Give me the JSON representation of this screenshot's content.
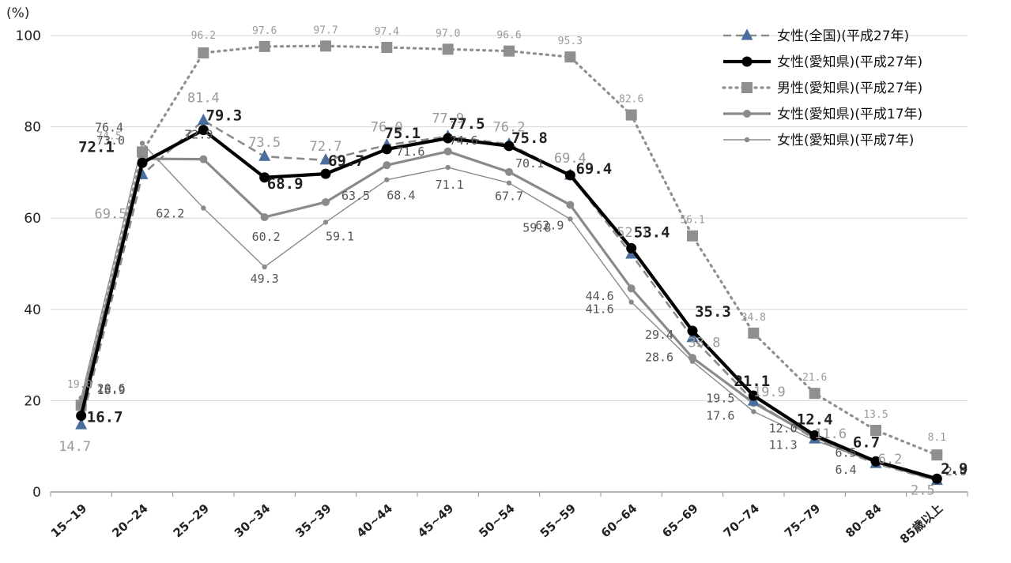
{
  "chart_data": {
    "type": "line",
    "ylabel": "(%)",
    "ylim": [
      0,
      100
    ],
    "yticks": [
      "0",
      "20",
      "40",
      "60",
      "80",
      "100"
    ],
    "grid": true,
    "legend_position": "top-right",
    "categories": [
      "15~19",
      "20~24",
      "25~29",
      "30~34",
      "35~39",
      "40~44",
      "45~49",
      "50~54",
      "55~59",
      "60~64",
      "65~69",
      "70~74",
      "75~79",
      "80~84",
      "85歳以上"
    ],
    "series": [
      {
        "name": "女性(全国)(平成27年)",
        "color": "#4a6d9c",
        "line_color": "#8a8a8a",
        "marker": "triangle",
        "values": [
          14.7,
          69.5,
          81.4,
          73.5,
          72.7,
          76.0,
          77.9,
          76.2,
          69.4,
          52.1,
          33.8,
          19.9,
          11.6,
          6.2,
          2.5
        ],
        "labels": [
          "14.7",
          "69.5",
          "81.4",
          "73.5",
          "72.7",
          "76.0",
          "77.9",
          "76.2",
          "69.4",
          "52.1",
          "33.8",
          "19.9",
          "11.6",
          "6.2",
          "2.5"
        ]
      },
      {
        "name": "女性(愛知県)(平成27年)",
        "color": "#000000",
        "marker": "circle",
        "values": [
          16.7,
          72.1,
          79.3,
          68.9,
          69.7,
          75.1,
          77.5,
          75.8,
          69.4,
          53.4,
          35.3,
          21.1,
          12.4,
          6.7,
          2.9
        ],
        "labels": [
          "16.7",
          "72.1",
          "79.3",
          "68.9",
          "69.7",
          "75.1",
          "77.5",
          "75.8",
          "69.4",
          "53.4",
          "35.3",
          "21.1",
          "12.4",
          "6.7",
          "2.9"
        ]
      },
      {
        "name": "男性(愛知県)(平成27年)",
        "color": "#8f8f8f",
        "marker": "square",
        "values": [
          19.0,
          74.5,
          96.2,
          97.6,
          97.7,
          97.4,
          97.0,
          96.6,
          95.3,
          82.6,
          56.1,
          34.8,
          21.6,
          13.5,
          8.1
        ],
        "labels": [
          "19.0",
          "74.5",
          "96.2",
          "97.6",
          "97.7",
          "97.4",
          "97.0",
          "96.6",
          "95.3",
          "82.6",
          "56.1",
          "34.8",
          "21.6",
          "13.5",
          "8.1"
        ]
      },
      {
        "name": "女性(愛知県)(平成17年)",
        "color": "#8a8a8a",
        "marker": "circle",
        "values": [
          18.9,
          73.0,
          72.9,
          60.2,
          63.5,
          71.6,
          74.6,
          70.1,
          62.9,
          44.6,
          29.4,
          19.5,
          12.0,
          6.5,
          2.6
        ],
        "labels": [
          "18.9",
          "73.0",
          "72.9",
          "60.2",
          "63.5",
          "71.6",
          "74.6",
          "70.1",
          "62.9",
          "44.6",
          "29.4",
          "19.5",
          "12.0",
          "6.5",
          "2.6"
        ]
      },
      {
        "name": "女性(愛知県)(平成7年)",
        "color": "#8a8a8a",
        "marker": "circle",
        "values": [
          20.6,
          76.4,
          62.2,
          49.3,
          59.1,
          68.4,
          71.1,
          67.7,
          59.8,
          41.6,
          28.6,
          17.6,
          11.3,
          6.4,
          null
        ],
        "labels": [
          "20.6",
          "76.4",
          "62.2",
          "49.3",
          "59.1",
          "68.4",
          "71.1",
          "67.7",
          "59.8",
          "41.6",
          "28.6",
          "17.6",
          "11.3",
          "6.4",
          ""
        ]
      }
    ]
  }
}
